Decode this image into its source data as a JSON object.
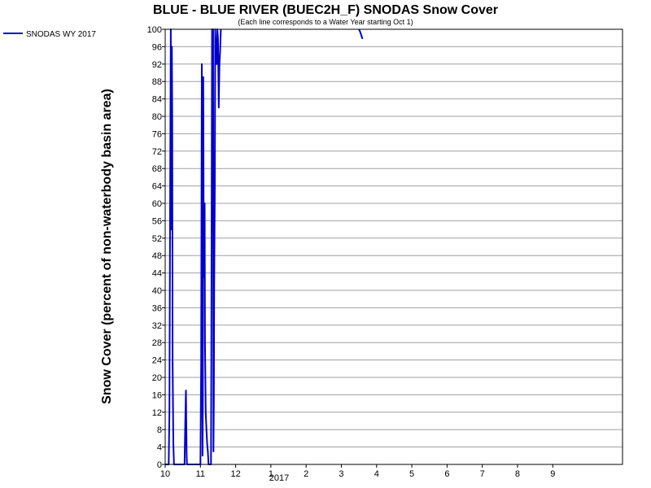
{
  "chart_data": {
    "type": "line",
    "title": "BLUE - BLUE RIVER (BUEC2H_F) SNODAS Snow Cover",
    "subtitle": "(Each line corresponds to a Water Year starting Oct 1)",
    "ylabel": "Snow Cover (percent of non-waterbody basin area)",
    "xlabel": "",
    "ylim": [
      0,
      100
    ],
    "yticks": [
      "0",
      "4",
      "8",
      "12",
      "16",
      "20",
      "24",
      "28",
      "32",
      "36",
      "40",
      "44",
      "48",
      "52",
      "56",
      "60",
      "64",
      "68",
      "72",
      "76",
      "80",
      "84",
      "88",
      "92",
      "96",
      "100"
    ],
    "xlim": [
      10,
      9.98
    ],
    "xticks": [
      {
        "label": "10",
        "m": 10
      },
      {
        "label": "11",
        "m": 11
      },
      {
        "label": "12",
        "m": 12
      },
      {
        "label": "1",
        "m": 13
      },
      {
        "label": "2",
        "m": 14
      },
      {
        "label": "3",
        "m": 15
      },
      {
        "label": "4",
        "m": 16
      },
      {
        "label": "5",
        "m": 17
      },
      {
        "label": "6",
        "m": 18
      },
      {
        "label": "7",
        "m": 19
      },
      {
        "label": "8",
        "m": 20
      },
      {
        "label": "9",
        "m": 21
      }
    ],
    "year_label": "2017",
    "grid": true,
    "legend": "top-left",
    "color": "#0000cc",
    "series": [
      {
        "name": "SNODAS WY 2017",
        "segments": [
          [
            [
              10.0,
              0
            ],
            [
              10.1,
              0
            ],
            [
              10.12,
              12
            ],
            [
              10.14,
              62
            ],
            [
              10.16,
              100
            ],
            [
              10.17,
              54
            ],
            [
              10.19,
              96
            ],
            [
              10.2,
              78
            ],
            [
              10.21,
              24
            ],
            [
              10.23,
              5
            ],
            [
              10.25,
              0
            ],
            [
              10.55,
              0
            ],
            [
              10.57,
              10
            ],
            [
              10.59,
              17
            ],
            [
              10.61,
              2
            ],
            [
              10.62,
              0
            ],
            [
              11.0,
              0
            ],
            [
              11.02,
              23
            ],
            [
              11.04,
              92
            ],
            [
              11.05,
              56
            ],
            [
              11.06,
              2
            ],
            [
              11.07,
              14
            ],
            [
              11.08,
              89
            ],
            [
              11.09,
              60
            ],
            [
              11.1,
              43
            ],
            [
              11.11,
              52
            ],
            [
              11.12,
              60
            ],
            [
              11.13,
              28
            ],
            [
              11.15,
              12
            ],
            [
              11.17,
              8
            ],
            [
              11.19,
              5
            ],
            [
              11.21,
              3
            ],
            [
              11.23,
              0
            ],
            [
              11.3,
              0
            ],
            [
              11.31,
              25
            ],
            [
              11.33,
              100
            ],
            [
              11.34,
              91
            ],
            [
              11.36,
              100
            ],
            [
              11.37,
              3
            ],
            [
              11.38,
              15
            ],
            [
              11.39,
              40
            ],
            [
              11.41,
              64
            ],
            [
              11.42,
              100
            ],
            [
              11.44,
              95
            ],
            [
              11.46,
              92
            ],
            [
              11.48,
              100
            ],
            [
              11.5,
              98
            ],
            [
              11.52,
              82
            ],
            [
              11.54,
              92
            ],
            [
              11.56,
              95
            ],
            [
              11.58,
              100
            ]
          ],
          [
            [
              15.5,
              100
            ],
            [
              15.53,
              99.5
            ],
            [
              15.56,
              98.8
            ],
            [
              15.6,
              97.8
            ]
          ]
        ]
      }
    ]
  }
}
